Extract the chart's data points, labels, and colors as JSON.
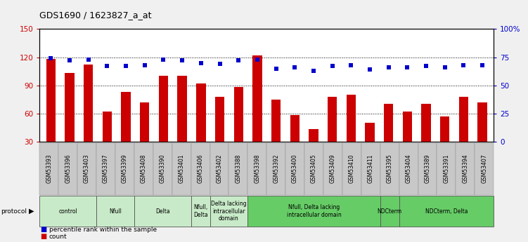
{
  "title": "GDS1690 / 1623827_a_at",
  "samples": [
    "GSM53393",
    "GSM53396",
    "GSM53403",
    "GSM53397",
    "GSM53399",
    "GSM53408",
    "GSM53390",
    "GSM53401",
    "GSM53406",
    "GSM53402",
    "GSM53388",
    "GSM53398",
    "GSM53392",
    "GSM53400",
    "GSM53405",
    "GSM53409",
    "GSM53410",
    "GSM53411",
    "GSM53395",
    "GSM53404",
    "GSM53389",
    "GSM53391",
    "GSM53394",
    "GSM53407"
  ],
  "counts": [
    118,
    103,
    112,
    62,
    83,
    72,
    100,
    100,
    92,
    78,
    88,
    122,
    75,
    58,
    43,
    78,
    80,
    50,
    70,
    62,
    70,
    57,
    78,
    72
  ],
  "percentiles": [
    74,
    72,
    73,
    67,
    67,
    68,
    73,
    72,
    70,
    69,
    72,
    73,
    65,
    66,
    63,
    67,
    68,
    64,
    66,
    66,
    67,
    66,
    68,
    68
  ],
  "groups": [
    {
      "label": "control",
      "start": 0,
      "end": 3,
      "color": "#c8eac8"
    },
    {
      "label": "Nfull",
      "start": 3,
      "end": 5,
      "color": "#c8eac8"
    },
    {
      "label": "Delta",
      "start": 5,
      "end": 8,
      "color": "#c8eac8"
    },
    {
      "label": "Nfull,\nDelta",
      "start": 8,
      "end": 9,
      "color": "#c8eac8"
    },
    {
      "label": "Delta lacking\nintracellular\ndomain",
      "start": 9,
      "end": 11,
      "color": "#c8eac8"
    },
    {
      "label": "Nfull, Delta lacking\nintracellular domain",
      "start": 11,
      "end": 18,
      "color": "#66cc66"
    },
    {
      "label": "NDCterm",
      "start": 18,
      "end": 19,
      "color": "#66cc66"
    },
    {
      "label": "NDCterm, Delta",
      "start": 19,
      "end": 24,
      "color": "#66cc66"
    }
  ],
  "ylim_left": [
    30,
    150
  ],
  "ylim_right": [
    0,
    100
  ],
  "yticks_left": [
    30,
    60,
    90,
    120,
    150
  ],
  "yticks_right": [
    0,
    25,
    50,
    75,
    100
  ],
  "ytick_right_labels": [
    "0",
    "25",
    "50",
    "75",
    "100%"
  ],
  "bar_color": "#cc0000",
  "dot_color": "#0000cc",
  "background_color": "#f0f0f0",
  "plot_bg": "#ffffff",
  "col_bg": "#c8c8c8"
}
